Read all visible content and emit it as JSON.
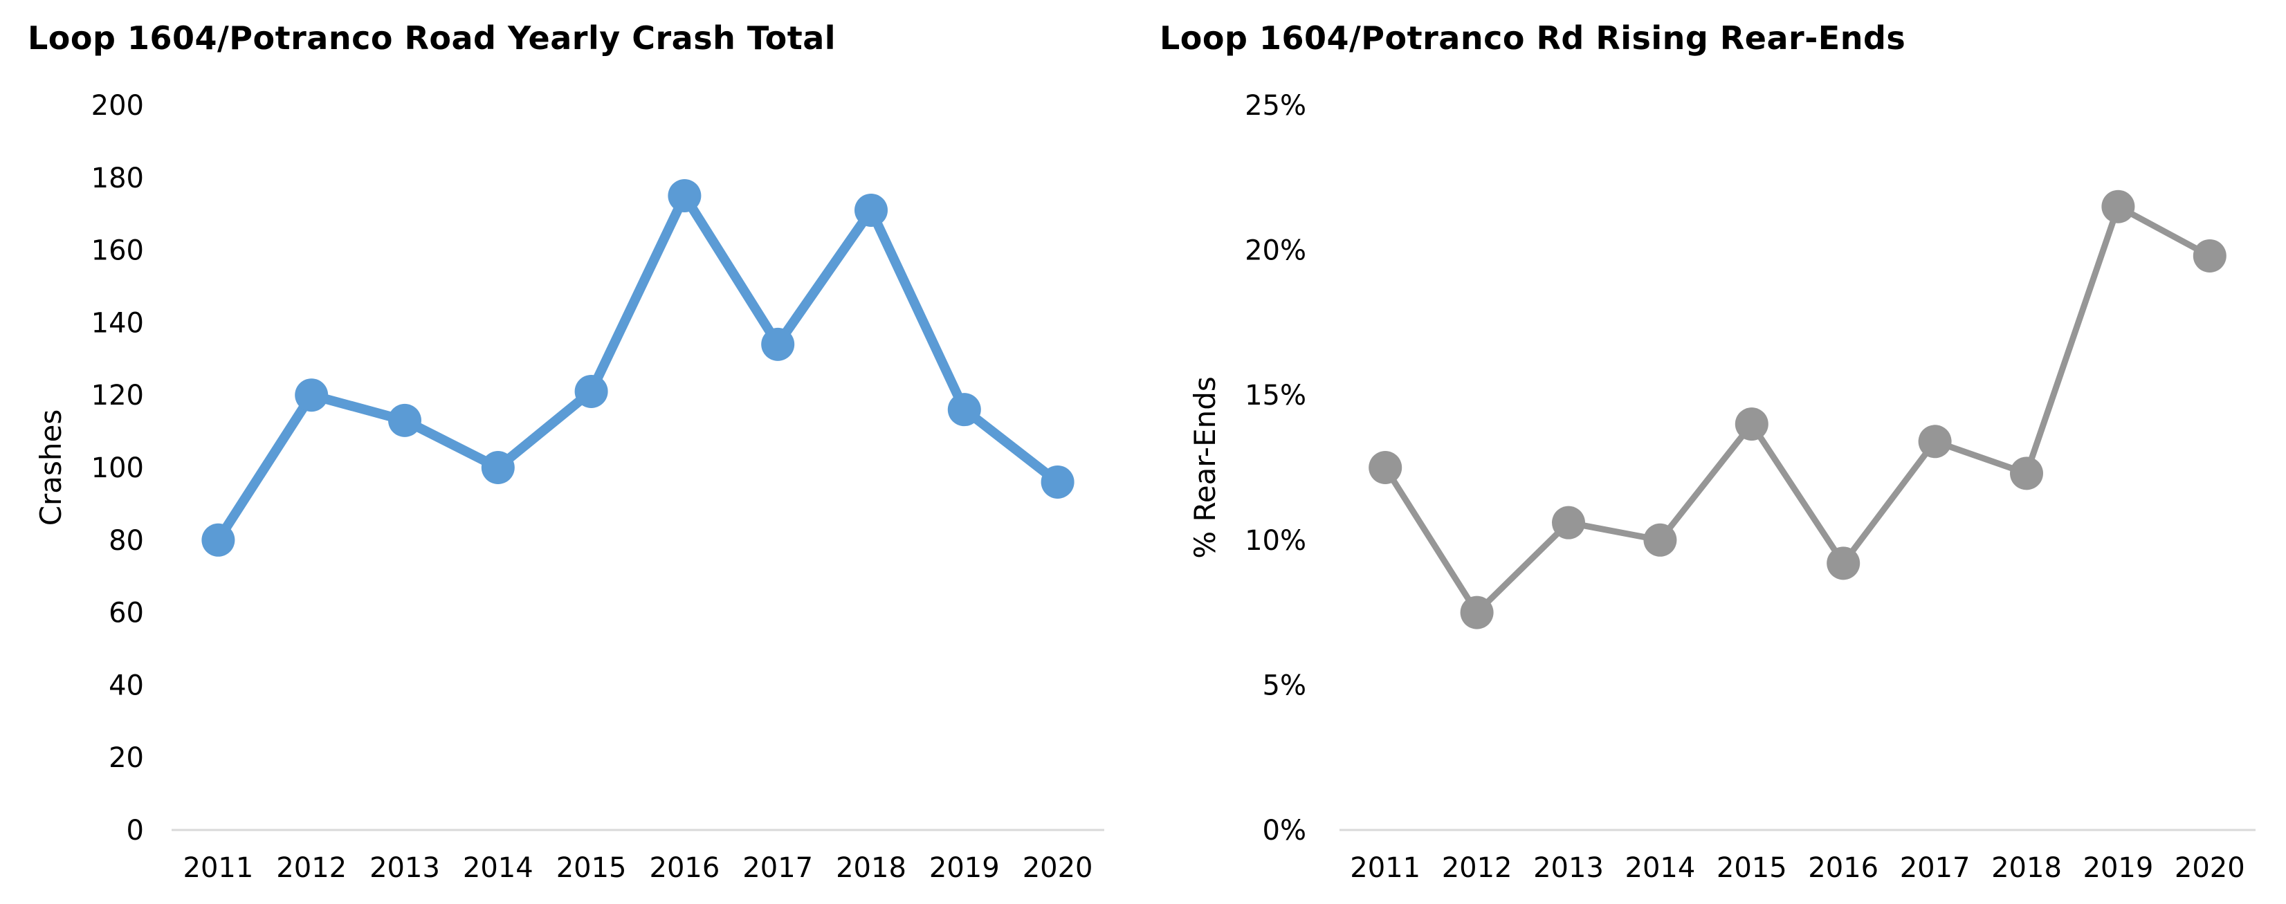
{
  "chart_data": [
    {
      "type": "line",
      "title": "Loop 1604/Potranco Road Yearly Crash Total",
      "ylabel": "Crashes",
      "xlabel": "",
      "categories": [
        "2011",
        "2012",
        "2013",
        "2014",
        "2015",
        "2016",
        "2017",
        "2018",
        "2019",
        "2020"
      ],
      "series": [
        {
          "values": [
            80,
            120,
            113,
            100,
            121,
            175,
            134,
            171,
            116,
            96
          ],
          "color": "#5B9BD5"
        }
      ],
      "ylim": [
        0,
        200
      ],
      "yticks": [
        "0",
        "20",
        "40",
        "60",
        "80",
        "100",
        "120",
        "140",
        "160",
        "180",
        "200"
      ],
      "grid": false,
      "legend": "none"
    },
    {
      "type": "line",
      "title": "Loop 1604/Potranco Rd Rising Rear-Ends",
      "ylabel": "% Rear-Ends",
      "xlabel": "",
      "categories": [
        "2011",
        "2012",
        "2013",
        "2014",
        "2015",
        "2016",
        "2017",
        "2018",
        "2019",
        "2020"
      ],
      "series": [
        {
          "values": [
            12.5,
            7.5,
            10.6,
            10.0,
            14.0,
            9.2,
            13.4,
            12.3,
            21.5,
            19.8
          ],
          "color": "#969696"
        }
      ],
      "ylim": [
        0,
        25
      ],
      "yticks": [
        "0%",
        "5%",
        "10%",
        "15%",
        "20%",
        "25%"
      ],
      "grid": false,
      "legend": "none"
    }
  ]
}
